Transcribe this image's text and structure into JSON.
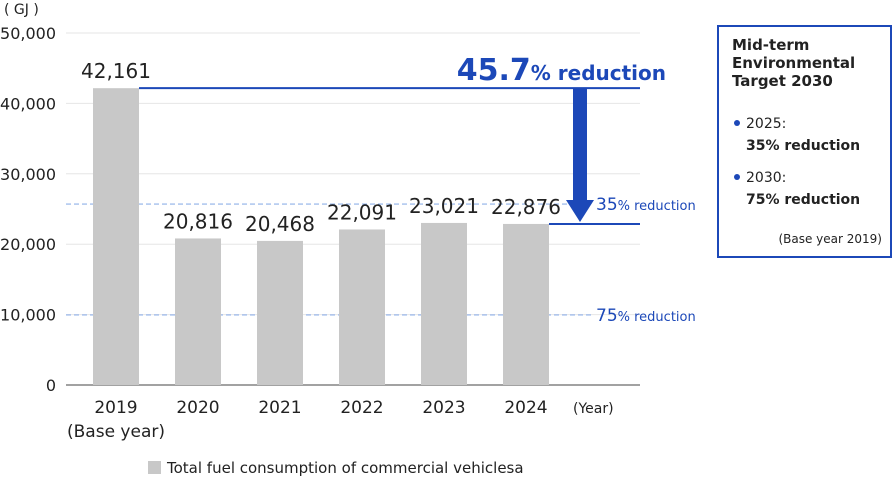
{
  "chart_data": {
    "type": "bar",
    "y_unit": "( GJ )",
    "x_unit": "(Year)",
    "categories": [
      "2019",
      "2020",
      "2021",
      "2022",
      "2023",
      "2024"
    ],
    "base_year_label": "(Base year)",
    "values": [
      42161,
      20816,
      20468,
      22091,
      23021,
      22876
    ],
    "value_labels": [
      "42,161",
      "20,816",
      "20,468",
      "22,091",
      "23,021",
      "22,876"
    ],
    "color": "#c8c8c8",
    "ylim": [
      0,
      50000
    ],
    "yticks": [
      0,
      {
        "value": 10000,
        "label": "10,000"
      },
      {
        "value": 20000,
        "label": "20,000"
      },
      {
        "value": 30000,
        "label": "30,000"
      },
      {
        "value": 40000,
        "label": "40,000"
      },
      {
        "value": 50000,
        "label": "50,000"
      }
    ],
    "grid": true,
    "legend": "Total fuel consumption of commercial vehiclesa",
    "reduction": {
      "value": "45.7",
      "suffix": "% reduction"
    },
    "reference_lines": [
      {
        "value": 25700,
        "label": "35",
        "suffix": "% reduction"
      },
      {
        "value": 9950,
        "label": "75",
        "suffix": "% reduction"
      }
    ],
    "target_box": {
      "title": [
        "Mid-term",
        "Environmental",
        "Target 2030"
      ],
      "items": [
        {
          "year": "2025:",
          "target": "35% reduction"
        },
        {
          "year": "2030:",
          "target": "75% reduction"
        }
      ],
      "note": "(Base year 2019)"
    }
  }
}
